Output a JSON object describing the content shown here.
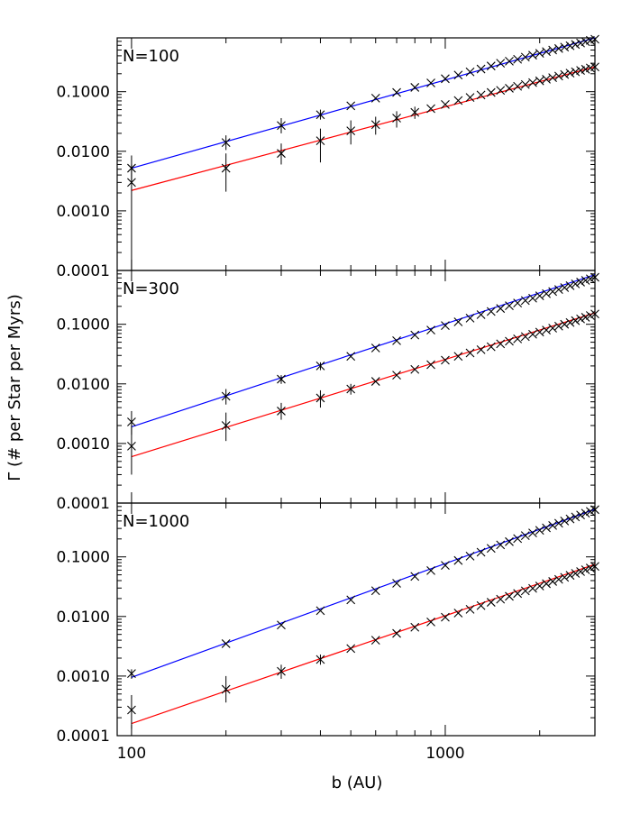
{
  "figure": {
    "ylabel": "Γ (# per Star per Myrs)",
    "xlabel": "b (AU)"
  },
  "colors": {
    "fit_upper": "#0000ff",
    "fit_lower": "#ff0000",
    "markers": "#000000",
    "axes": "#000000"
  },
  "chart_data": [
    {
      "type": "scatter",
      "annotation": "N=100",
      "xscale": "log",
      "yscale": "log",
      "xlim": [
        90,
        3000
      ],
      "ylim": [
        0.0001,
        0.8
      ],
      "xticks": [
        100,
        1000
      ],
      "xticklabels": [
        "100",
        "1000"
      ],
      "yticks": [
        0.0001,
        0.001,
        0.01,
        0.1
      ],
      "yticklabels": [
        "0.0001",
        "0.0010",
        "0.0100",
        "0.1000"
      ],
      "show_xticklabels": false,
      "grid": false,
      "series": [
        {
          "color_key": "fit_upper",
          "fit": {
            "x0": 100,
            "y0": 0.0052,
            "x1": 3000,
            "y1": 0.8
          },
          "points": [
            {
              "x": 100,
              "y": 0.0052,
              "err": [
                0.003,
                0.0085
              ]
            },
            {
              "x": 200,
              "y": 0.014,
              "err": [
                0.0105,
                0.0185
              ]
            },
            {
              "x": 300,
              "y": 0.027,
              "err": [
                0.02,
                0.036
              ]
            },
            {
              "x": 400,
              "y": 0.041,
              "err": [
                0.034,
                0.05
              ]
            },
            {
              "x": 500,
              "y": 0.058
            },
            {
              "x": 600,
              "y": 0.078
            },
            {
              "x": 700,
              "y": 0.097
            },
            {
              "x": 800,
              "y": 0.118
            },
            {
              "x": 900,
              "y": 0.14
            },
            {
              "x": 1000,
              "y": 0.165
            },
            {
              "x": 1100,
              "y": 0.19
            },
            {
              "x": 1200,
              "y": 0.215
            },
            {
              "x": 1300,
              "y": 0.24
            },
            {
              "x": 1400,
              "y": 0.27
            },
            {
              "x": 1500,
              "y": 0.3
            },
            {
              "x": 1600,
              "y": 0.325
            },
            {
              "x": 1700,
              "y": 0.35
            },
            {
              "x": 1800,
              "y": 0.38
            },
            {
              "x": 1900,
              "y": 0.41
            },
            {
              "x": 2000,
              "y": 0.44
            },
            {
              "x": 2100,
              "y": 0.47
            },
            {
              "x": 2200,
              "y": 0.5
            },
            {
              "x": 2300,
              "y": 0.53
            },
            {
              "x": 2400,
              "y": 0.56
            },
            {
              "x": 2500,
              "y": 0.59
            },
            {
              "x": 2600,
              "y": 0.62
            },
            {
              "x": 2700,
              "y": 0.655
            },
            {
              "x": 2800,
              "y": 0.69
            },
            {
              "x": 2900,
              "y": 0.725
            },
            {
              "x": 3000,
              "y": 0.76
            }
          ]
        },
        {
          "color_key": "fit_lower",
          "fit": {
            "x0": 100,
            "y0": 0.0022,
            "x1": 3000,
            "y1": 0.26
          },
          "points": [
            {
              "x": 100,
              "y": 0.003,
              "err": [
                0.0001,
                0.006
              ]
            },
            {
              "x": 200,
              "y": 0.0052,
              "err": [
                0.0021,
                0.0092
              ]
            },
            {
              "x": 300,
              "y": 0.0092,
              "err": [
                0.006,
                0.0135
              ]
            },
            {
              "x": 400,
              "y": 0.015,
              "err": [
                0.0065,
                0.024
              ]
            },
            {
              "x": 500,
              "y": 0.022,
              "err": [
                0.013,
                0.033
              ]
            },
            {
              "x": 600,
              "y": 0.028,
              "err": [
                0.019,
                0.038
              ]
            },
            {
              "x": 700,
              "y": 0.036,
              "err": [
                0.025,
                0.047
              ]
            },
            {
              "x": 800,
              "y": 0.045,
              "err": [
                0.035,
                0.056
              ]
            },
            {
              "x": 900,
              "y": 0.052
            },
            {
              "x": 1000,
              "y": 0.061
            },
            {
              "x": 1100,
              "y": 0.071
            },
            {
              "x": 1200,
              "y": 0.08
            },
            {
              "x": 1300,
              "y": 0.088
            },
            {
              "x": 1400,
              "y": 0.097
            },
            {
              "x": 1500,
              "y": 0.105
            },
            {
              "x": 1600,
              "y": 0.114
            },
            {
              "x": 1700,
              "y": 0.123
            },
            {
              "x": 1800,
              "y": 0.132
            },
            {
              "x": 1900,
              "y": 0.142
            },
            {
              "x": 2000,
              "y": 0.152
            },
            {
              "x": 2100,
              "y": 0.162
            },
            {
              "x": 2200,
              "y": 0.172
            },
            {
              "x": 2300,
              "y": 0.183
            },
            {
              "x": 2400,
              "y": 0.194
            },
            {
              "x": 2500,
              "y": 0.205
            },
            {
              "x": 2600,
              "y": 0.216
            },
            {
              "x": 2700,
              "y": 0.227
            },
            {
              "x": 2800,
              "y": 0.238
            },
            {
              "x": 2900,
              "y": 0.25
            },
            {
              "x": 3000,
              "y": 0.26
            }
          ]
        }
      ]
    },
    {
      "type": "scatter",
      "annotation": "N=300",
      "xscale": "log",
      "yscale": "log",
      "xlim": [
        90,
        3000
      ],
      "ylim": [
        0.0001,
        0.8
      ],
      "xticks": [
        100,
        1000
      ],
      "xticklabels": [
        "100",
        "1000"
      ],
      "yticks": [
        0.0001,
        0.001,
        0.01,
        0.1
      ],
      "yticklabels": [
        "0.0001",
        "0.0010",
        "0.0100",
        "0.1000"
      ],
      "show_xticklabels": false,
      "grid": false,
      "series": [
        {
          "color_key": "fit_upper",
          "fit": {
            "x0": 100,
            "y0": 0.0019,
            "x1": 3000,
            "y1": 0.68
          },
          "points": [
            {
              "x": 100,
              "y": 0.0023,
              "err": [
                0.0014,
                0.0035
              ]
            },
            {
              "x": 200,
              "y": 0.0062,
              "err": [
                0.0045,
                0.0082
              ]
            },
            {
              "x": 300,
              "y": 0.012,
              "err": [
                0.01,
                0.014
              ]
            },
            {
              "x": 400,
              "y": 0.02,
              "err": [
                0.017,
                0.023
              ]
            },
            {
              "x": 500,
              "y": 0.029
            },
            {
              "x": 600,
              "y": 0.04
            },
            {
              "x": 700,
              "y": 0.053
            },
            {
              "x": 800,
              "y": 0.066
            },
            {
              "x": 900,
              "y": 0.08
            },
            {
              "x": 1000,
              "y": 0.095
            },
            {
              "x": 1100,
              "y": 0.11
            },
            {
              "x": 1200,
              "y": 0.127
            },
            {
              "x": 1300,
              "y": 0.145
            },
            {
              "x": 1400,
              "y": 0.164
            },
            {
              "x": 1500,
              "y": 0.184
            },
            {
              "x": 1600,
              "y": 0.205
            },
            {
              "x": 1700,
              "y": 0.227
            },
            {
              "x": 1800,
              "y": 0.25
            },
            {
              "x": 1900,
              "y": 0.274
            },
            {
              "x": 2000,
              "y": 0.3
            },
            {
              "x": 2100,
              "y": 0.326
            },
            {
              "x": 2200,
              "y": 0.354
            },
            {
              "x": 2300,
              "y": 0.383
            },
            {
              "x": 2400,
              "y": 0.413
            },
            {
              "x": 2500,
              "y": 0.444
            },
            {
              "x": 2600,
              "y": 0.476
            },
            {
              "x": 2700,
              "y": 0.51
            },
            {
              "x": 2800,
              "y": 0.545
            },
            {
              "x": 2900,
              "y": 0.58
            },
            {
              "x": 3000,
              "y": 0.615
            }
          ]
        },
        {
          "color_key": "fit_lower",
          "fit": {
            "x0": 100,
            "y0": 0.0006,
            "x1": 3000,
            "y1": 0.155
          },
          "points": [
            {
              "x": 100,
              "y": 0.0009,
              "err": [
                0.0003,
                0.002
              ]
            },
            {
              "x": 200,
              "y": 0.002,
              "err": [
                0.0011,
                0.0033
              ]
            },
            {
              "x": 300,
              "y": 0.0035,
              "err": [
                0.0025,
                0.0048
              ]
            },
            {
              "x": 400,
              "y": 0.0058,
              "err": [
                0.004,
                0.0078
              ]
            },
            {
              "x": 500,
              "y": 0.0082,
              "err": [
                0.0066,
                0.01
              ]
            },
            {
              "x": 600,
              "y": 0.011
            },
            {
              "x": 700,
              "y": 0.014
            },
            {
              "x": 800,
              "y": 0.0175
            },
            {
              "x": 900,
              "y": 0.021
            },
            {
              "x": 1000,
              "y": 0.025
            },
            {
              "x": 1100,
              "y": 0.029
            },
            {
              "x": 1200,
              "y": 0.033
            },
            {
              "x": 1300,
              "y": 0.0375
            },
            {
              "x": 1400,
              "y": 0.042
            },
            {
              "x": 1500,
              "y": 0.047
            },
            {
              "x": 1600,
              "y": 0.052
            },
            {
              "x": 1700,
              "y": 0.057
            },
            {
              "x": 1800,
              "y": 0.062
            },
            {
              "x": 1900,
              "y": 0.068
            },
            {
              "x": 2000,
              "y": 0.074
            },
            {
              "x": 2100,
              "y": 0.08
            },
            {
              "x": 2200,
              "y": 0.086
            },
            {
              "x": 2300,
              "y": 0.093
            },
            {
              "x": 2400,
              "y": 0.1
            },
            {
              "x": 2500,
              "y": 0.107
            },
            {
              "x": 2600,
              "y": 0.115
            },
            {
              "x": 2700,
              "y": 0.123
            },
            {
              "x": 2800,
              "y": 0.131
            },
            {
              "x": 2900,
              "y": 0.14
            },
            {
              "x": 3000,
              "y": 0.149
            }
          ]
        }
      ]
    },
    {
      "type": "scatter",
      "annotation": "N=1000",
      "xscale": "log",
      "yscale": "log",
      "xlim": [
        90,
        3000
      ],
      "ylim": [
        0.0001,
        0.8
      ],
      "xticks": [
        100,
        1000
      ],
      "xticklabels": [
        "100",
        "1000"
      ],
      "yticks": [
        0.0001,
        0.001,
        0.01,
        0.1
      ],
      "yticklabels": [
        "0.0001",
        "0.0010",
        "0.0100",
        "0.1000"
      ],
      "show_xticklabels": true,
      "grid": false,
      "series": [
        {
          "color_key": "fit_upper",
          "fit": {
            "x0": 100,
            "y0": 0.00095,
            "x1": 3000,
            "y1": 0.63
          },
          "points": [
            {
              "x": 100,
              "y": 0.0011,
              "err": [
                0.0009,
                0.0013
              ]
            },
            {
              "x": 200,
              "y": 0.0035
            },
            {
              "x": 300,
              "y": 0.0072
            },
            {
              "x": 400,
              "y": 0.0125
            },
            {
              "x": 500,
              "y": 0.019
            },
            {
              "x": 600,
              "y": 0.027
            },
            {
              "x": 700,
              "y": 0.036
            },
            {
              "x": 800,
              "y": 0.047
            },
            {
              "x": 900,
              "y": 0.059
            },
            {
              "x": 1000,
              "y": 0.072
            },
            {
              "x": 1100,
              "y": 0.087
            },
            {
              "x": 1200,
              "y": 0.103
            },
            {
              "x": 1300,
              "y": 0.12
            },
            {
              "x": 1400,
              "y": 0.139
            },
            {
              "x": 1500,
              "y": 0.159
            },
            {
              "x": 1600,
              "y": 0.18
            },
            {
              "x": 1700,
              "y": 0.203
            },
            {
              "x": 1800,
              "y": 0.227
            },
            {
              "x": 1900,
              "y": 0.252
            },
            {
              "x": 2000,
              "y": 0.279
            },
            {
              "x": 2100,
              "y": 0.307
            },
            {
              "x": 2200,
              "y": 0.336
            },
            {
              "x": 2300,
              "y": 0.367
            },
            {
              "x": 2400,
              "y": 0.4
            },
            {
              "x": 2500,
              "y": 0.433
            },
            {
              "x": 2600,
              "y": 0.468
            },
            {
              "x": 2700,
              "y": 0.504
            },
            {
              "x": 2800,
              "y": 0.541
            },
            {
              "x": 2900,
              "y": 0.58
            },
            {
              "x": 3000,
              "y": 0.62
            }
          ]
        },
        {
          "color_key": "fit_lower",
          "fit": {
            "x0": 100,
            "y0": 0.00016,
            "x1": 3000,
            "y1": 0.075
          },
          "points": [
            {
              "x": 100,
              "y": 0.00027,
              "err": [
                0.00013,
                0.00048
              ]
            },
            {
              "x": 200,
              "y": 0.0006,
              "err": [
                0.00036,
                0.001
              ]
            },
            {
              "x": 300,
              "y": 0.0012,
              "err": [
                0.0009,
                0.00155
              ]
            },
            {
              "x": 400,
              "y": 0.0019,
              "err": [
                0.00155,
                0.0023
              ]
            },
            {
              "x": 500,
              "y": 0.0029
            },
            {
              "x": 600,
              "y": 0.004
            },
            {
              "x": 700,
              "y": 0.0052
            },
            {
              "x": 800,
              "y": 0.0066
            },
            {
              "x": 900,
              "y": 0.0081
            },
            {
              "x": 1000,
              "y": 0.0097
            },
            {
              "x": 1100,
              "y": 0.0114
            },
            {
              "x": 1200,
              "y": 0.0132
            },
            {
              "x": 1300,
              "y": 0.0152
            },
            {
              "x": 1400,
              "y": 0.0173
            },
            {
              "x": 1500,
              "y": 0.0195
            },
            {
              "x": 1600,
              "y": 0.0218
            },
            {
              "x": 1700,
              "y": 0.0243
            },
            {
              "x": 1800,
              "y": 0.0269
            },
            {
              "x": 1900,
              "y": 0.0296
            },
            {
              "x": 2000,
              "y": 0.0325
            },
            {
              "x": 2100,
              "y": 0.0355
            },
            {
              "x": 2200,
              "y": 0.0387
            },
            {
              "x": 2300,
              "y": 0.042
            },
            {
              "x": 2400,
              "y": 0.0454
            },
            {
              "x": 2500,
              "y": 0.049
            },
            {
              "x": 2600,
              "y": 0.0528
            },
            {
              "x": 2700,
              "y": 0.0567
            },
            {
              "x": 2800,
              "y": 0.0608
            },
            {
              "x": 2900,
              "y": 0.065
            },
            {
              "x": 3000,
              "y": 0.0693
            }
          ]
        }
      ]
    }
  ]
}
